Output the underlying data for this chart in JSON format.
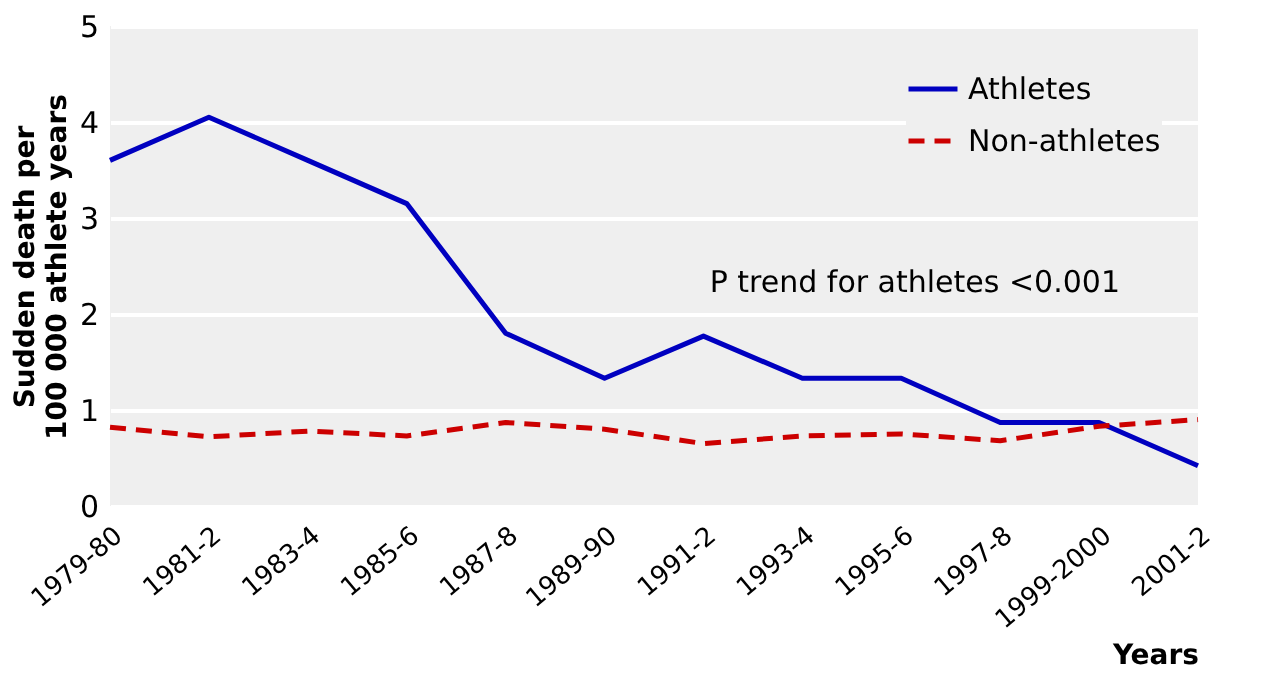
{
  "chart_data": {
    "type": "line",
    "xlabel": "Years",
    "ylabel": "Sudden death per\n100 000 athlete years",
    "categories": [
      "1979-80",
      "1981-2",
      "1983-4",
      "1985-6",
      "1987-8",
      "1989-90",
      "1991-2",
      "1993-4",
      "1995-6",
      "1997-8",
      "1999-2000",
      "2001-2"
    ],
    "series": [
      {
        "name": "Athletes",
        "color": "#0000c0",
        "line_style": "solid",
        "values": [
          3.6,
          4.05,
          3.6,
          3.15,
          1.8,
          1.33,
          1.77,
          1.33,
          1.33,
          0.87,
          0.87,
          0.42
        ]
      },
      {
        "name": "Non-athletes",
        "color": "#cc0000",
        "line_style": "dashed",
        "values": [
          0.82,
          0.72,
          0.78,
          0.73,
          0.87,
          0.8,
          0.65,
          0.73,
          0.75,
          0.68,
          0.83,
          0.9
        ]
      }
    ],
    "ylim": [
      0,
      5
    ],
    "yticks": [
      0,
      1,
      2,
      3,
      4,
      5
    ],
    "grid": "y",
    "legend": "top right",
    "marker": "none",
    "annotations": [
      "P trend for athletes <0.001"
    ]
  }
}
